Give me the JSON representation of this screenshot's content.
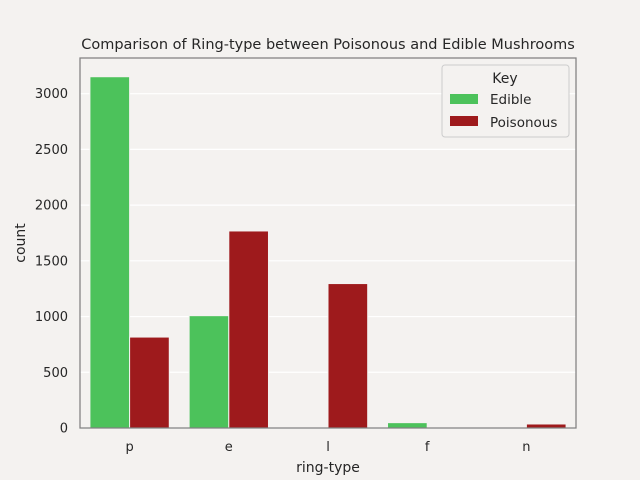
{
  "chart_data": {
    "type": "bar",
    "title": "Comparison of Ring-type between Poisonous and Edible Mushrooms",
    "xlabel": "ring-type",
    "ylabel": "count",
    "categories": [
      "p",
      "e",
      "l",
      "f",
      "n"
    ],
    "series": [
      {
        "name": "Edible",
        "color": "#4cc25b",
        "values": [
          3152,
          1008,
          0,
          48,
          0
        ]
      },
      {
        "name": "Poisonous",
        "color": "#9e1a1c",
        "values": [
          816,
          1768,
          1296,
          0,
          36
        ]
      }
    ],
    "ylim": [
      0,
      3320
    ],
    "yticks": [
      0,
      500,
      1000,
      1500,
      2000,
      2500,
      3000
    ],
    "grid": "y",
    "legend": {
      "title": "Key",
      "position": "top-right"
    }
  }
}
